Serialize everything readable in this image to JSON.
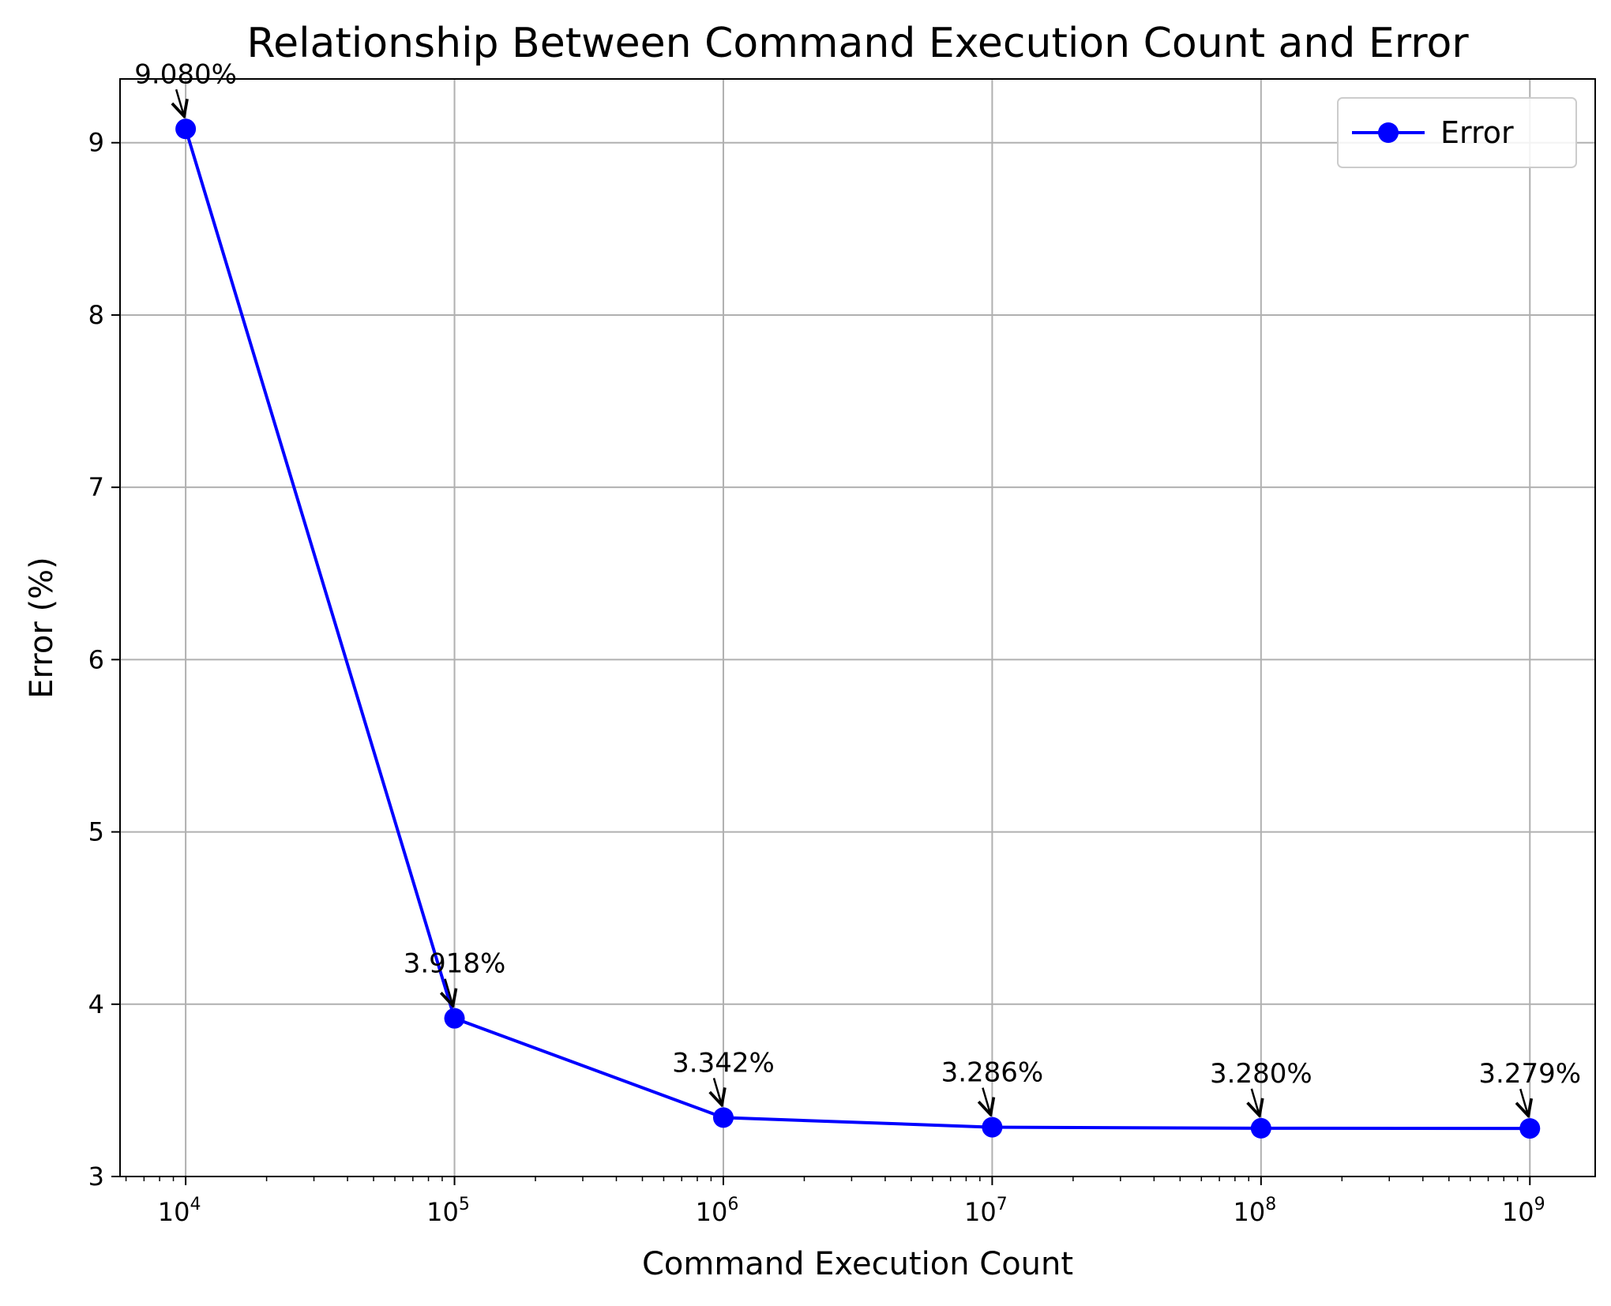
{
  "chart_data": {
    "type": "line",
    "title": "Relationship Between Command Execution Count and Error",
    "xlabel": "Command Execution Count",
    "ylabel": "Error (%)",
    "x_scale": "log",
    "xlim": [
      5700,
      1750000000
    ],
    "ylim": [
      3,
      9.37
    ],
    "grid": true,
    "legend_position": "top-right",
    "x_ticks": [
      {
        "value": 10000,
        "base": "10",
        "exp": "4"
      },
      {
        "value": 100000,
        "base": "10",
        "exp": "5"
      },
      {
        "value": 1000000,
        "base": "10",
        "exp": "6"
      },
      {
        "value": 10000000,
        "base": "10",
        "exp": "7"
      },
      {
        "value": 100000000,
        "base": "10",
        "exp": "8"
      },
      {
        "value": 1000000000,
        "base": "10",
        "exp": "9"
      }
    ],
    "y_ticks": [
      {
        "value": 3,
        "label": "3"
      },
      {
        "value": 4,
        "label": "4"
      },
      {
        "value": 5,
        "label": "5"
      },
      {
        "value": 6,
        "label": "6"
      },
      {
        "value": 7,
        "label": "7"
      },
      {
        "value": 8,
        "label": "8"
      },
      {
        "value": 9,
        "label": "9"
      }
    ],
    "series": [
      {
        "name": "Error",
        "color": "#0000ff",
        "marker": "circle",
        "points": [
          {
            "x": 10000,
            "y": 9.08,
            "label": "9.080%"
          },
          {
            "x": 100000,
            "y": 3.918,
            "label": "3.918%"
          },
          {
            "x": 1000000,
            "y": 3.342,
            "label": "3.342%"
          },
          {
            "x": 10000000,
            "y": 3.286,
            "label": "3.286%"
          },
          {
            "x": 100000000,
            "y": 3.28,
            "label": "3.280%"
          },
          {
            "x": 1000000000,
            "y": 3.279,
            "label": "3.279%"
          }
        ]
      }
    ]
  }
}
